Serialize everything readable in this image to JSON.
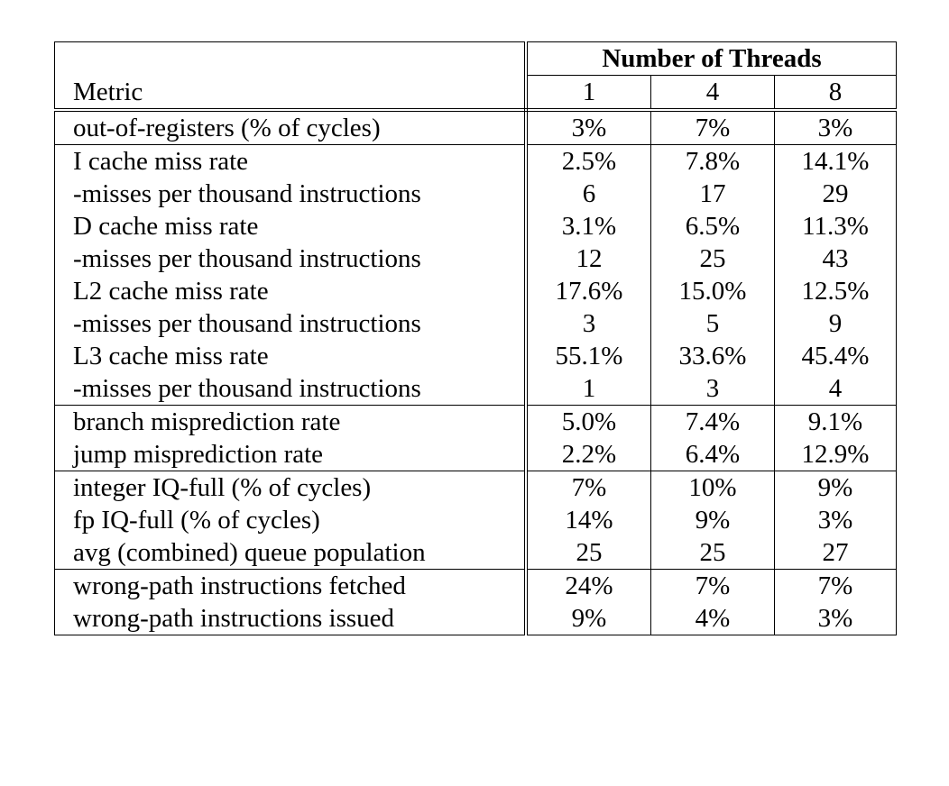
{
  "table": {
    "group_header": "Number of Threads",
    "metric_header": "Metric",
    "thread_counts": [
      "1",
      "4",
      "8"
    ],
    "sections": [
      {
        "rows": [
          {
            "metric": "out-of-registers (% of cycles)",
            "values": [
              "3%",
              "7%",
              "3%"
            ]
          }
        ]
      },
      {
        "rows": [
          {
            "metric": "I cache miss rate",
            "values": [
              "2.5%",
              "7.8%",
              "14.1%"
            ]
          },
          {
            "metric": "-misses per thousand instructions",
            "values": [
              "6",
              "17",
              "29"
            ]
          },
          {
            "metric": "D cache miss rate",
            "values": [
              "3.1%",
              "6.5%",
              "11.3%"
            ]
          },
          {
            "metric": "-misses per thousand instructions",
            "values": [
              "12",
              "25",
              "43"
            ]
          },
          {
            "metric": "L2 cache miss rate",
            "values": [
              "17.6%",
              "15.0%",
              "12.5%"
            ]
          },
          {
            "metric": "-misses per thousand instructions",
            "values": [
              "3",
              "5",
              "9"
            ]
          },
          {
            "metric": "L3 cache miss rate",
            "values": [
              "55.1%",
              "33.6%",
              "45.4%"
            ]
          },
          {
            "metric": "-misses per thousand instructions",
            "values": [
              "1",
              "3",
              "4"
            ]
          }
        ]
      },
      {
        "rows": [
          {
            "metric": "branch misprediction rate",
            "values": [
              "5.0%",
              "7.4%",
              "9.1%"
            ]
          },
          {
            "metric": "jump misprediction rate",
            "values": [
              "2.2%",
              "6.4%",
              "12.9%"
            ]
          }
        ]
      },
      {
        "rows": [
          {
            "metric": "integer IQ-full (% of cycles)",
            "values": [
              "7%",
              "10%",
              "9%"
            ]
          },
          {
            "metric": "fp IQ-full (% of cycles)",
            "values": [
              "14%",
              "9%",
              "3%"
            ]
          },
          {
            "metric": "avg (combined) queue population",
            "values": [
              "25",
              "25",
              "27"
            ]
          }
        ]
      },
      {
        "rows": [
          {
            "metric": "wrong-path instructions fetched",
            "values": [
              "24%",
              "7%",
              "7%"
            ]
          },
          {
            "metric": "wrong-path instructions issued",
            "values": [
              "9%",
              "4%",
              "3%"
            ]
          }
        ]
      }
    ]
  }
}
